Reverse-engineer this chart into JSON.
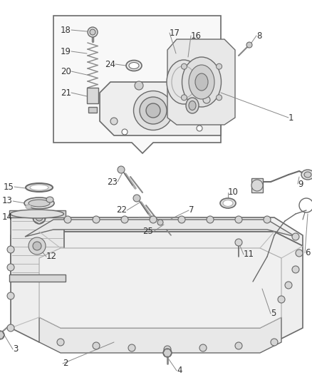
{
  "bg_color": "#ffffff",
  "line_color": "#6a6a6a",
  "label_color": "#333333",
  "label_fontsize": 8.5,
  "fig_width": 4.38,
  "fig_height": 5.33,
  "dpi": 100
}
